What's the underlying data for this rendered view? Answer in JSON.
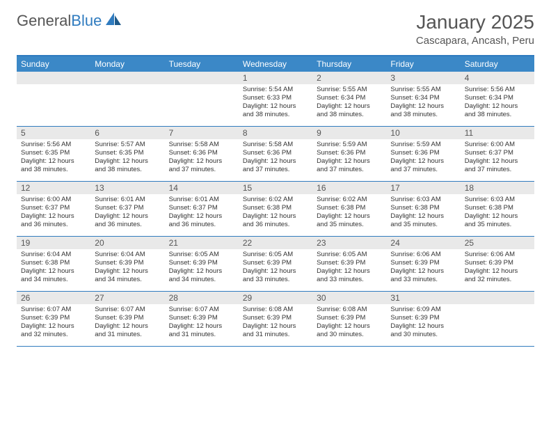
{
  "logo": {
    "text_general": "General",
    "text_blue": "Blue"
  },
  "header": {
    "month_title": "January 2025",
    "location": "Cascapara, Ancash, Peru"
  },
  "colors": {
    "brand_blue": "#3b88c7",
    "border_blue": "#2f7bbf",
    "day_header_bg": "#e9e9e9",
    "text": "#333333",
    "text_muted": "#555555",
    "bg": "#ffffff"
  },
  "weekdays": [
    "Sunday",
    "Monday",
    "Tuesday",
    "Wednesday",
    "Thursday",
    "Friday",
    "Saturday"
  ],
  "weeks": [
    [
      {
        "empty": true
      },
      {
        "empty": true
      },
      {
        "empty": true
      },
      {
        "n": "1",
        "sr": "Sunrise: 5:54 AM",
        "ss": "Sunset: 6:33 PM",
        "d1": "Daylight: 12 hours",
        "d2": "and 38 minutes."
      },
      {
        "n": "2",
        "sr": "Sunrise: 5:55 AM",
        "ss": "Sunset: 6:34 PM",
        "d1": "Daylight: 12 hours",
        "d2": "and 38 minutes."
      },
      {
        "n": "3",
        "sr": "Sunrise: 5:55 AM",
        "ss": "Sunset: 6:34 PM",
        "d1": "Daylight: 12 hours",
        "d2": "and 38 minutes."
      },
      {
        "n": "4",
        "sr": "Sunrise: 5:56 AM",
        "ss": "Sunset: 6:34 PM",
        "d1": "Daylight: 12 hours",
        "d2": "and 38 minutes."
      }
    ],
    [
      {
        "n": "5",
        "sr": "Sunrise: 5:56 AM",
        "ss": "Sunset: 6:35 PM",
        "d1": "Daylight: 12 hours",
        "d2": "and 38 minutes."
      },
      {
        "n": "6",
        "sr": "Sunrise: 5:57 AM",
        "ss": "Sunset: 6:35 PM",
        "d1": "Daylight: 12 hours",
        "d2": "and 38 minutes."
      },
      {
        "n": "7",
        "sr": "Sunrise: 5:58 AM",
        "ss": "Sunset: 6:36 PM",
        "d1": "Daylight: 12 hours",
        "d2": "and 37 minutes."
      },
      {
        "n": "8",
        "sr": "Sunrise: 5:58 AM",
        "ss": "Sunset: 6:36 PM",
        "d1": "Daylight: 12 hours",
        "d2": "and 37 minutes."
      },
      {
        "n": "9",
        "sr": "Sunrise: 5:59 AM",
        "ss": "Sunset: 6:36 PM",
        "d1": "Daylight: 12 hours",
        "d2": "and 37 minutes."
      },
      {
        "n": "10",
        "sr": "Sunrise: 5:59 AM",
        "ss": "Sunset: 6:36 PM",
        "d1": "Daylight: 12 hours",
        "d2": "and 37 minutes."
      },
      {
        "n": "11",
        "sr": "Sunrise: 6:00 AM",
        "ss": "Sunset: 6:37 PM",
        "d1": "Daylight: 12 hours",
        "d2": "and 37 minutes."
      }
    ],
    [
      {
        "n": "12",
        "sr": "Sunrise: 6:00 AM",
        "ss": "Sunset: 6:37 PM",
        "d1": "Daylight: 12 hours",
        "d2": "and 36 minutes."
      },
      {
        "n": "13",
        "sr": "Sunrise: 6:01 AM",
        "ss": "Sunset: 6:37 PM",
        "d1": "Daylight: 12 hours",
        "d2": "and 36 minutes."
      },
      {
        "n": "14",
        "sr": "Sunrise: 6:01 AM",
        "ss": "Sunset: 6:37 PM",
        "d1": "Daylight: 12 hours",
        "d2": "and 36 minutes."
      },
      {
        "n": "15",
        "sr": "Sunrise: 6:02 AM",
        "ss": "Sunset: 6:38 PM",
        "d1": "Daylight: 12 hours",
        "d2": "and 36 minutes."
      },
      {
        "n": "16",
        "sr": "Sunrise: 6:02 AM",
        "ss": "Sunset: 6:38 PM",
        "d1": "Daylight: 12 hours",
        "d2": "and 35 minutes."
      },
      {
        "n": "17",
        "sr": "Sunrise: 6:03 AM",
        "ss": "Sunset: 6:38 PM",
        "d1": "Daylight: 12 hours",
        "d2": "and 35 minutes."
      },
      {
        "n": "18",
        "sr": "Sunrise: 6:03 AM",
        "ss": "Sunset: 6:38 PM",
        "d1": "Daylight: 12 hours",
        "d2": "and 35 minutes."
      }
    ],
    [
      {
        "n": "19",
        "sr": "Sunrise: 6:04 AM",
        "ss": "Sunset: 6:38 PM",
        "d1": "Daylight: 12 hours",
        "d2": "and 34 minutes."
      },
      {
        "n": "20",
        "sr": "Sunrise: 6:04 AM",
        "ss": "Sunset: 6:39 PM",
        "d1": "Daylight: 12 hours",
        "d2": "and 34 minutes."
      },
      {
        "n": "21",
        "sr": "Sunrise: 6:05 AM",
        "ss": "Sunset: 6:39 PM",
        "d1": "Daylight: 12 hours",
        "d2": "and 34 minutes."
      },
      {
        "n": "22",
        "sr": "Sunrise: 6:05 AM",
        "ss": "Sunset: 6:39 PM",
        "d1": "Daylight: 12 hours",
        "d2": "and 33 minutes."
      },
      {
        "n": "23",
        "sr": "Sunrise: 6:05 AM",
        "ss": "Sunset: 6:39 PM",
        "d1": "Daylight: 12 hours",
        "d2": "and 33 minutes."
      },
      {
        "n": "24",
        "sr": "Sunrise: 6:06 AM",
        "ss": "Sunset: 6:39 PM",
        "d1": "Daylight: 12 hours",
        "d2": "and 33 minutes."
      },
      {
        "n": "25",
        "sr": "Sunrise: 6:06 AM",
        "ss": "Sunset: 6:39 PM",
        "d1": "Daylight: 12 hours",
        "d2": "and 32 minutes."
      }
    ],
    [
      {
        "n": "26",
        "sr": "Sunrise: 6:07 AM",
        "ss": "Sunset: 6:39 PM",
        "d1": "Daylight: 12 hours",
        "d2": "and 32 minutes."
      },
      {
        "n": "27",
        "sr": "Sunrise: 6:07 AM",
        "ss": "Sunset: 6:39 PM",
        "d1": "Daylight: 12 hours",
        "d2": "and 31 minutes."
      },
      {
        "n": "28",
        "sr": "Sunrise: 6:07 AM",
        "ss": "Sunset: 6:39 PM",
        "d1": "Daylight: 12 hours",
        "d2": "and 31 minutes."
      },
      {
        "n": "29",
        "sr": "Sunrise: 6:08 AM",
        "ss": "Sunset: 6:39 PM",
        "d1": "Daylight: 12 hours",
        "d2": "and 31 minutes."
      },
      {
        "n": "30",
        "sr": "Sunrise: 6:08 AM",
        "ss": "Sunset: 6:39 PM",
        "d1": "Daylight: 12 hours",
        "d2": "and 30 minutes."
      },
      {
        "n": "31",
        "sr": "Sunrise: 6:09 AM",
        "ss": "Sunset: 6:39 PM",
        "d1": "Daylight: 12 hours",
        "d2": "and 30 minutes."
      },
      {
        "empty": true
      }
    ]
  ]
}
